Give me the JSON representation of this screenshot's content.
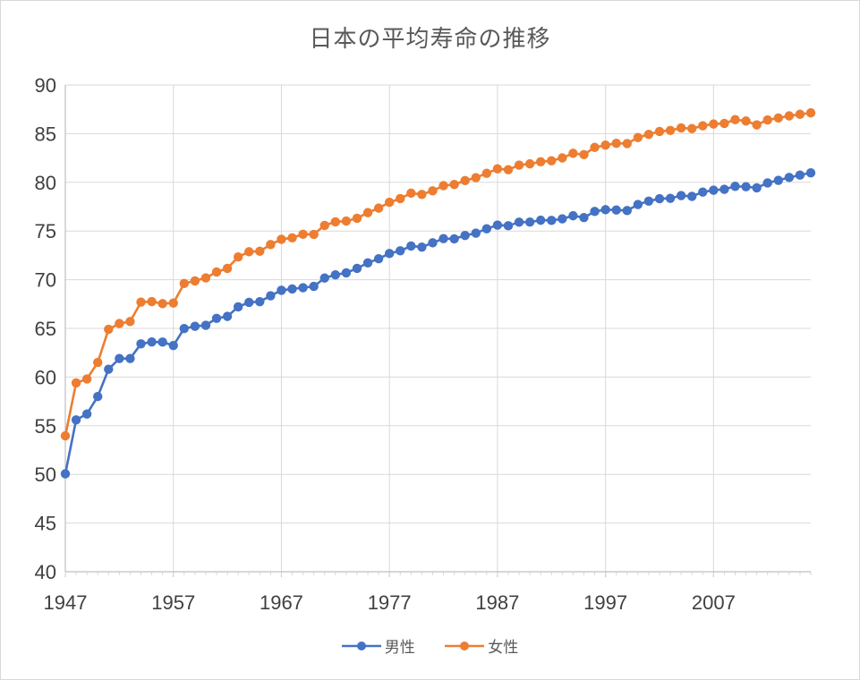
{
  "chart_data": {
    "type": "line",
    "title": "日本の平均寿命の推移",
    "xlabel": "",
    "ylabel": "",
    "ylim": [
      40,
      90
    ],
    "y_ticks": [
      90,
      85,
      80,
      75,
      70,
      65,
      60,
      55,
      50,
      45,
      40
    ],
    "x_ticks": [
      1947,
      1957,
      1967,
      1977,
      1987,
      1997,
      2007
    ],
    "grid": true,
    "legend": "bottom",
    "x": [
      1947,
      1948,
      1949,
      1950,
      1951,
      1952,
      1953,
      1954,
      1955,
      1956,
      1957,
      1958,
      1959,
      1960,
      1961,
      1962,
      1963,
      1964,
      1965,
      1966,
      1967,
      1968,
      1969,
      1970,
      1971,
      1972,
      1973,
      1974,
      1975,
      1976,
      1977,
      1978,
      1979,
      1980,
      1981,
      1982,
      1983,
      1984,
      1985,
      1986,
      1987,
      1988,
      1989,
      1990,
      1991,
      1992,
      1993,
      1994,
      1995,
      1996,
      1997,
      1998,
      1999,
      2000,
      2001,
      2002,
      2003,
      2004,
      2005,
      2006,
      2007,
      2008,
      2009,
      2010,
      2011,
      2012,
      2013,
      2014,
      2015,
      2016
    ],
    "series": [
      {
        "name": "男性",
        "color": "#4472c4",
        "values": [
          50.06,
          55.6,
          56.2,
          58.0,
          60.8,
          61.9,
          61.9,
          63.41,
          63.6,
          63.59,
          63.24,
          64.98,
          65.21,
          65.32,
          66.03,
          66.23,
          67.21,
          67.67,
          67.74,
          68.35,
          68.91,
          69.05,
          69.18,
          69.31,
          70.17,
          70.5,
          70.7,
          71.16,
          71.73,
          72.15,
          72.69,
          72.97,
          73.46,
          73.35,
          73.79,
          74.22,
          74.2,
          74.54,
          74.78,
          75.23,
          75.61,
          75.54,
          75.91,
          75.92,
          76.11,
          76.09,
          76.25,
          76.57,
          76.38,
          77.01,
          77.19,
          77.16,
          77.1,
          77.72,
          78.07,
          78.32,
          78.36,
          78.64,
          78.56,
          79.0,
          79.19,
          79.29,
          79.59,
          79.55,
          79.44,
          79.94,
          80.21,
          80.5,
          80.75,
          80.98
        ]
      },
      {
        "name": "女性",
        "color": "#ed7d31",
        "values": [
          53.96,
          59.4,
          59.8,
          61.5,
          64.9,
          65.5,
          65.7,
          67.69,
          67.75,
          67.54,
          67.6,
          69.61,
          69.88,
          70.19,
          70.79,
          71.16,
          72.34,
          72.87,
          72.92,
          73.61,
          74.15,
          74.3,
          74.67,
          74.66,
          75.58,
          75.94,
          76.02,
          76.31,
          76.89,
          77.35,
          77.95,
          78.33,
          78.89,
          78.76,
          79.13,
          79.66,
          79.78,
          80.18,
          80.48,
          80.93,
          81.39,
          81.3,
          81.77,
          81.9,
          82.11,
          82.22,
          82.51,
          82.98,
          82.85,
          83.59,
          83.82,
          84.01,
          83.99,
          84.6,
          84.93,
          85.23,
          85.33,
          85.59,
          85.52,
          85.81,
          85.99,
          86.05,
          86.44,
          86.3,
          85.9,
          86.41,
          86.61,
          86.83,
          86.99,
          87.14
        ]
      }
    ]
  }
}
